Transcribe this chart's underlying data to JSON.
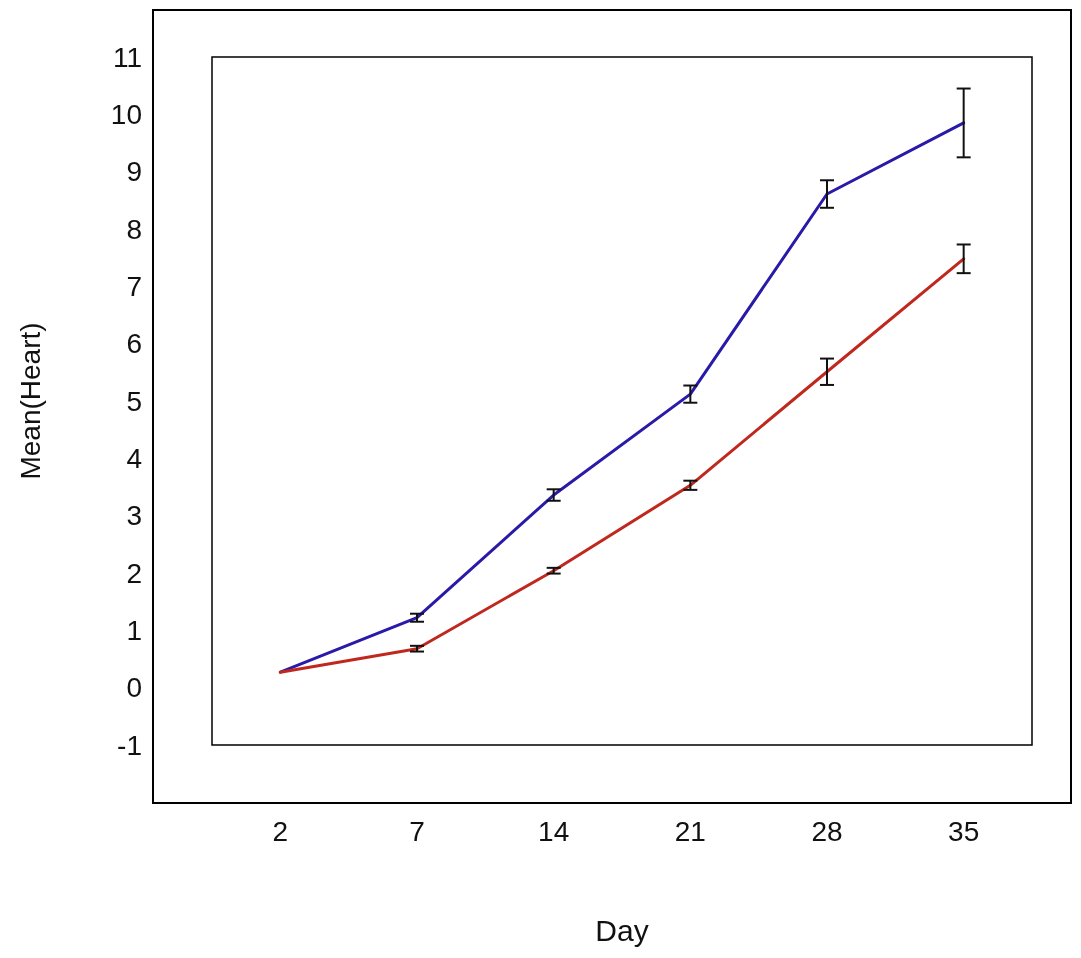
{
  "chart_data": {
    "type": "line",
    "xlabel": "Day",
    "ylabel": "Mean(Heart)",
    "categories": [
      "2",
      "7",
      "14",
      "21",
      "28",
      "35"
    ],
    "series": [
      {
        "color": "#2a1aa8",
        "values": [
          0.27,
          1.22,
          3.36,
          5.12,
          8.61,
          9.85
        ],
        "errors": [
          null,
          0.07,
          0.1,
          0.15,
          0.24,
          0.6
        ]
      },
      {
        "color": "#c0281e",
        "values": [
          0.27,
          0.68,
          2.04,
          3.53,
          5.51,
          7.48
        ],
        "errors": [
          null,
          0.05,
          0.05,
          0.08,
          0.23,
          0.25
        ]
      }
    ],
    "ylim": [
      -1,
      11
    ],
    "yticks": [
      -1,
      0,
      1,
      2,
      3,
      4,
      5,
      6,
      7,
      8,
      9,
      10,
      11
    ],
    "grid": false,
    "marker": "none",
    "line_style": "solid"
  }
}
